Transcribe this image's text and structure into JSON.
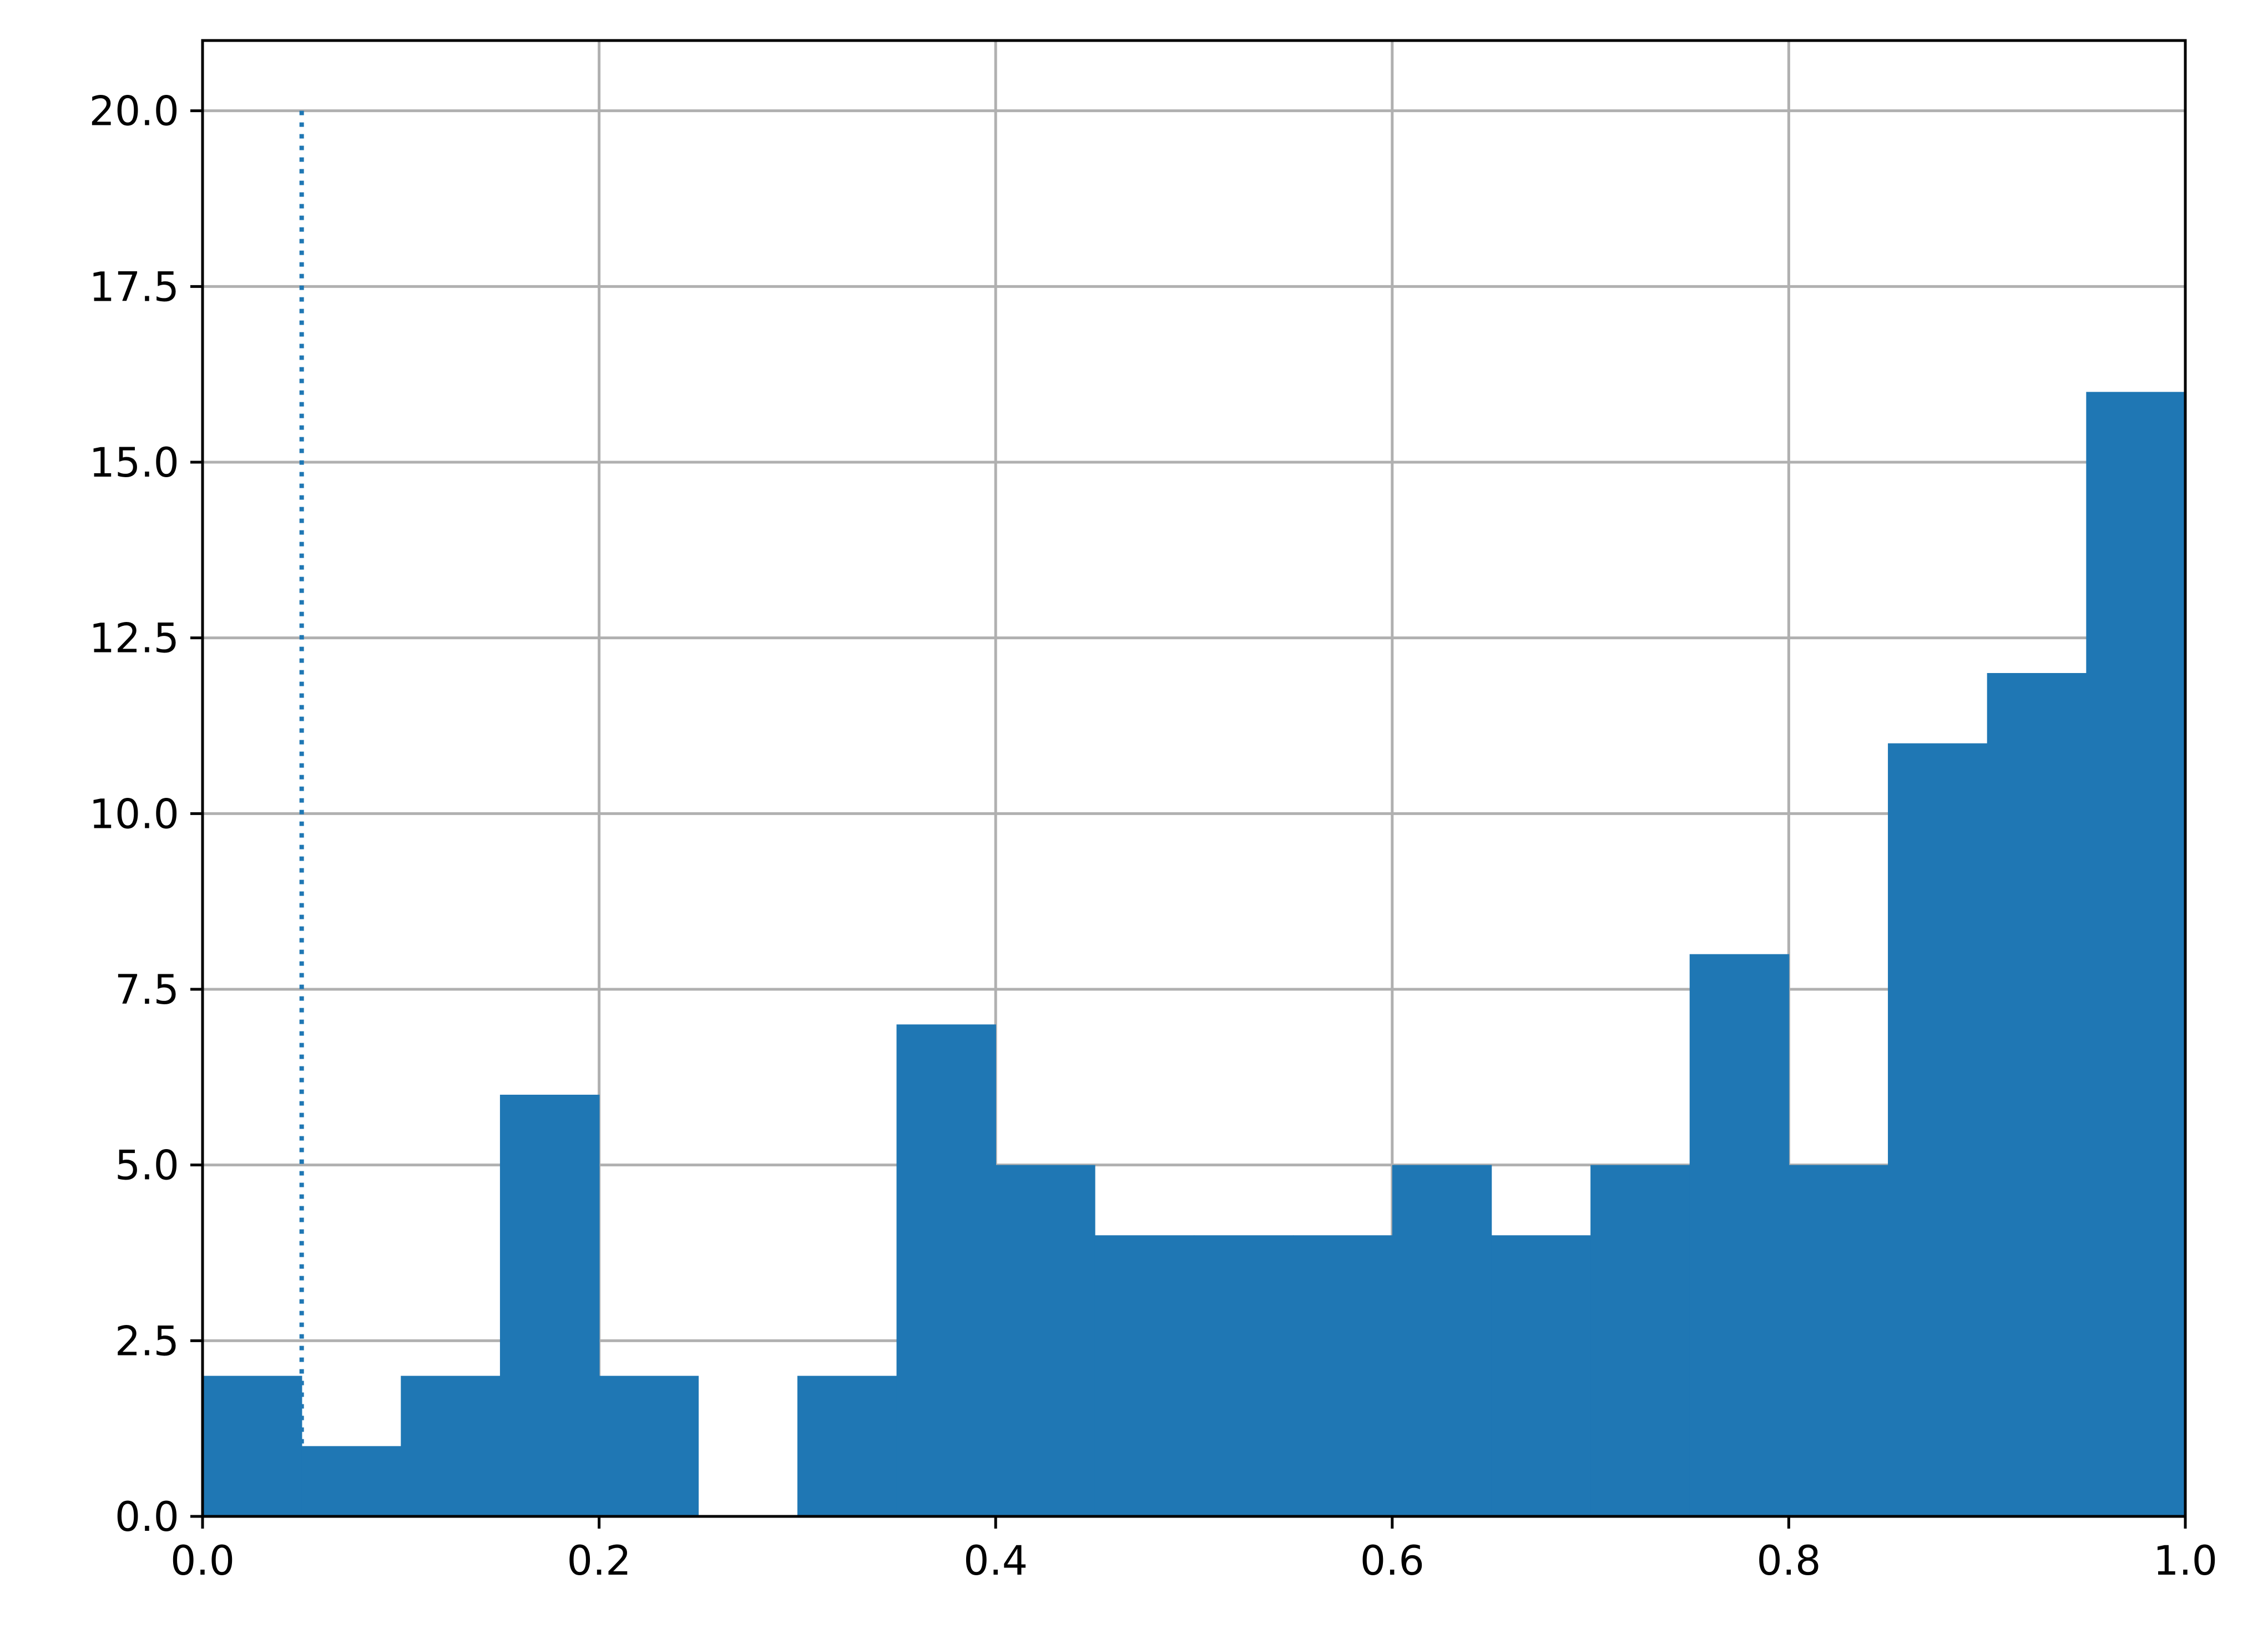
{
  "chart_data": {
    "type": "bar",
    "histogram": true,
    "bin_edges": [
      0.0,
      0.05,
      0.1,
      0.15,
      0.2,
      0.25,
      0.3,
      0.35,
      0.4,
      0.45,
      0.5,
      0.55,
      0.6,
      0.65,
      0.7,
      0.75,
      0.8,
      0.85,
      0.9,
      0.95,
      1.0
    ],
    "values": [
      2,
      1,
      2,
      6,
      2,
      0,
      2,
      7,
      5,
      4,
      4,
      4,
      5,
      4,
      5,
      8,
      5,
      11,
      12,
      16
    ],
    "bar_color": "#1f77b4",
    "reference_line": {
      "x": 0.05,
      "y_range": [
        1,
        20
      ],
      "style": "dotted",
      "color": "#1f77b4"
    },
    "xlim": [
      0.0,
      1.0
    ],
    "ylim": [
      0.0,
      21.0
    ],
    "x_ticks": [
      0.0,
      0.2,
      0.4,
      0.6,
      0.8,
      1.0
    ],
    "x_tick_labels": [
      "0.0",
      "0.2",
      "0.4",
      "0.6",
      "0.8",
      "1.0"
    ],
    "y_ticks": [
      0.0,
      2.5,
      5.0,
      7.5,
      10.0,
      12.5,
      15.0,
      17.5,
      20.0
    ],
    "y_tick_labels": [
      "0.0",
      "2.5",
      "5.0",
      "7.5",
      "10.0",
      "12.5",
      "15.0",
      "17.5",
      "20.0"
    ],
    "grid": true,
    "grid_color": "#b0b0b0",
    "title": "",
    "xlabel": "",
    "ylabel": ""
  }
}
